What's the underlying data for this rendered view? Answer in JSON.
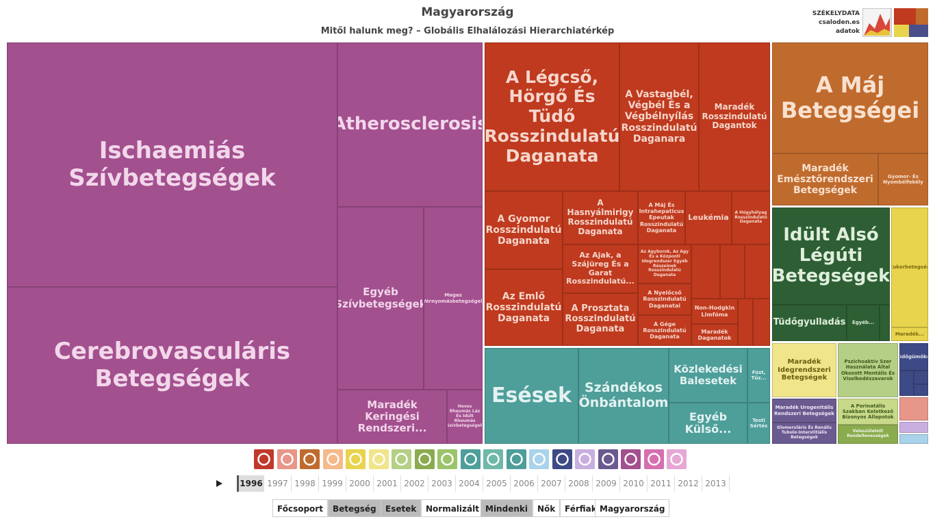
{
  "header": {
    "title": "Magyarország",
    "subtitle": "Mitől halunk meg? – Globális Elhalálozási Hierarchiatérkép"
  },
  "logo": {
    "lines": [
      "SZÉKELYDATA",
      "csaloden.es",
      "adatok"
    ]
  },
  "treemap": {
    "tiles": [
      "Ischaemiás Szívbetegségek",
      "Cerebrovasculáris Betegségek",
      "Atherosclerosis",
      "Egyéb Szívbetegségek",
      "Magas Vérnyomásbetegségek",
      "Maradék Keringési Rendszeri...",
      "Heves Rheumás Láz És Idült Rheumás Szívbetegségek",
      "A Légcső, Hörgő És Tüdő Rosszindulatú Daganata",
      "A Vastagbél, Végbél És a Végbélnyílás Rosszindulatú Daganara",
      "Maradék Rosszindulatú Dagantok",
      "A Gyomor Rosszindulatú Daganata",
      "Az Emlő Rosszindulatú Daganata",
      "A Hasnyálmirigy Rosszindulatú Daganata",
      "Az Ajak, a Szájüreg És a Garat Rosszindulatú...",
      "A Prosztata Rosszindulatú Daganata",
      "A Máj És Intrahepaticus Epeutak Rosszindulatú Daganata",
      "Leukémia",
      "A Húgyhólyag Rosszindulatú Daganata",
      "Az Agyburok, Az Agy És a Központi Idegrendszer Egyéb Részeinek Rosszindulatú Daganata",
      "A Nyelőcső Rosszindulatú Daganatai",
      "A Gége Rosszindulatú Daganata",
      "Non-Hodgkin Limfóma",
      "Maradék Daganatok",
      "Esések",
      "Szándékos Önbántalom",
      "Közlekedési Balesetek",
      "Egyéb Külső...",
      "Füst, Tűz...",
      "Testi Sértés",
      "A Máj Betegségei",
      "Maradék Emésztőrendszeri Betegségek",
      "Gyomor- És Nyombélfekély",
      "Idült Alsó Légúti Betegségek",
      "Tüdőgyulladás",
      "Egyéb...",
      "Cukorbetegség",
      "Maradék...",
      "Maradék Idegrendszeri Betegségek",
      "Pszichoaktív Szer Használata Által Okozott Mentális És Viselkedészavarok",
      "Tüdőgümőkór",
      "Maradék Urogenitális Rendszeri Betegségek",
      "Glomeruláris És Renális Tubulo-Interstitiális Betegségek",
      "A Perinatális Szakban Keletkező Bizonyos Állapotok",
      "Veleszületett Rendellenességek"
    ]
  },
  "years": [
    "1996",
    "1997",
    "1998",
    "1999",
    "2000",
    "2001",
    "2002",
    "2003",
    "2004",
    "2005",
    "2006",
    "2007",
    "2008",
    "2009",
    "2010",
    "2011",
    "2012",
    "2013"
  ],
  "controls": [
    [
      "Főcsoport",
      "Betegség"
    ],
    [
      "Esetek",
      "Normalizált"
    ],
    [
      "Mindenki",
      "Nők",
      "Férfiak"
    ],
    [
      "Magyarország"
    ]
  ]
}
